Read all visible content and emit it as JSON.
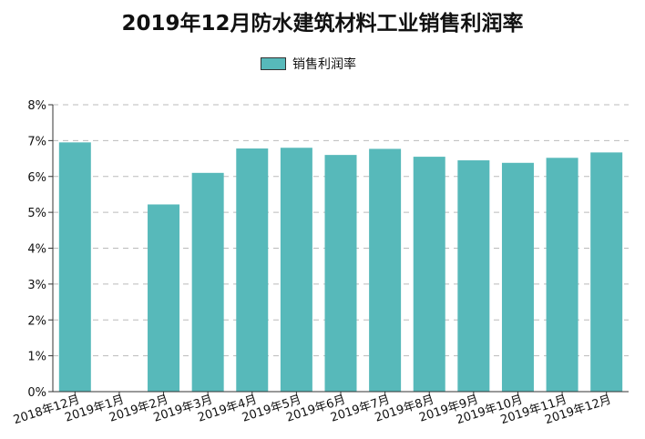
{
  "chart_data": {
    "type": "bar",
    "title": "2019年12月防水建筑材料工业销售利润率",
    "legend": [
      "销售利润率"
    ],
    "legend_position": "top-center",
    "categories": [
      "2018年12月",
      "2019年1月",
      "2019年2月",
      "2019年3月",
      "2019年4月",
      "2019年5月",
      "2019年6月",
      "2019年7月",
      "2019年8月",
      "2019年9月",
      "2019年10月",
      "2019年11月",
      "2019年12月"
    ],
    "series": [
      {
        "name": "销售利润率",
        "values": [
          6.95,
          null,
          5.22,
          6.1,
          6.78,
          6.8,
          6.6,
          6.77,
          6.55,
          6.45,
          6.38,
          6.52,
          6.67
        ]
      }
    ],
    "y_ticks": [
      "0%",
      "1%",
      "2%",
      "3%",
      "4%",
      "5%",
      "6%",
      "7%",
      "8%"
    ],
    "ylim": [
      0,
      8
    ],
    "y_unit": "%",
    "grid": "horizontal dashed",
    "colors": {
      "bar": "#57B9BA",
      "grid": "#bbbbbb",
      "axis": "#333333"
    }
  }
}
